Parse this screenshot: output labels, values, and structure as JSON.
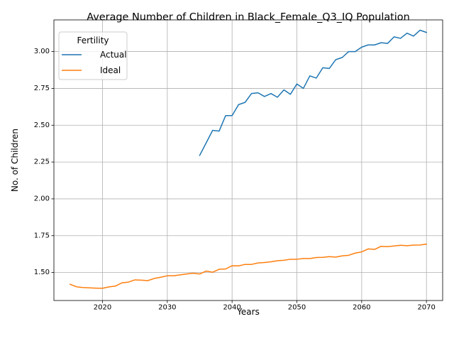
{
  "chart_data": {
    "type": "line",
    "title": "Average Number of Children in Black_Female_Q3_IQ Population",
    "xlabel": "Years",
    "ylabel": "No. of Children",
    "xlim": [
      2012.5,
      2072.5
    ],
    "ylim": [
      1.31,
      3.215
    ],
    "xticks": [
      2020,
      2030,
      2040,
      2050,
      2060,
      2070
    ],
    "xtick_labels": [
      "2020",
      "2030",
      "2040",
      "2050",
      "2060",
      "2070"
    ],
    "yticks": [
      1.5,
      1.75,
      2.0,
      2.25,
      2.5,
      2.75,
      3.0
    ],
    "ytick_labels": [
      "1.50",
      "1.75",
      "2.00",
      "2.25",
      "2.50",
      "2.75",
      "3.00"
    ],
    "grid": true,
    "legend": {
      "title": "Fertility",
      "position": "top-left"
    },
    "series": [
      {
        "name": "Actual",
        "color": "#1f77b4",
        "x": [
          2035,
          2036,
          2037,
          2038,
          2039,
          2040,
          2041,
          2042,
          2043,
          2044,
          2045,
          2046,
          2047,
          2048,
          2049,
          2050,
          2051,
          2052,
          2053,
          2054,
          2055,
          2056,
          2057,
          2058,
          2059,
          2060,
          2061,
          2062,
          2063,
          2064,
          2065,
          2066,
          2067,
          2068,
          2069,
          2070
        ],
        "y": [
          2.295,
          2.38,
          2.465,
          2.46,
          2.565,
          2.565,
          2.64,
          2.655,
          2.715,
          2.72,
          2.695,
          2.715,
          2.69,
          2.74,
          2.71,
          2.78,
          2.75,
          2.835,
          2.82,
          2.89,
          2.885,
          2.945,
          2.96,
          3.0,
          3.0,
          3.03,
          3.045,
          3.045,
          3.06,
          3.055,
          3.1,
          3.09,
          3.125,
          3.105,
          3.145,
          3.13
        ]
      },
      {
        "name": "Ideal",
        "color": "#ff7f0e",
        "x": [
          2015,
          2016,
          2017,
          2018,
          2019,
          2020,
          2021,
          2022,
          2023,
          2024,
          2025,
          2026,
          2027,
          2028,
          2029,
          2030,
          2031,
          2032,
          2033,
          2034,
          2035,
          2036,
          2037,
          2038,
          2039,
          2040,
          2041,
          2042,
          2043,
          2044,
          2045,
          2046,
          2047,
          2048,
          2049,
          2050,
          2051,
          2052,
          2053,
          2054,
          2055,
          2056,
          2057,
          2058,
          2059,
          2060,
          2061,
          2062,
          2063,
          2064,
          2065,
          2066,
          2067,
          2068,
          2069,
          2070
        ],
        "y": [
          1.42,
          1.403,
          1.398,
          1.396,
          1.394,
          1.393,
          1.402,
          1.408,
          1.43,
          1.435,
          1.45,
          1.448,
          1.445,
          1.46,
          1.468,
          1.478,
          1.478,
          1.484,
          1.49,
          1.495,
          1.49,
          1.51,
          1.502,
          1.522,
          1.524,
          1.546,
          1.545,
          1.555,
          1.555,
          1.565,
          1.568,
          1.573,
          1.58,
          1.583,
          1.59,
          1.59,
          1.595,
          1.595,
          1.602,
          1.603,
          1.608,
          1.605,
          1.613,
          1.617,
          1.632,
          1.64,
          1.66,
          1.657,
          1.678,
          1.676,
          1.68,
          1.685,
          1.682,
          1.686,
          1.687,
          1.693
        ]
      }
    ]
  }
}
